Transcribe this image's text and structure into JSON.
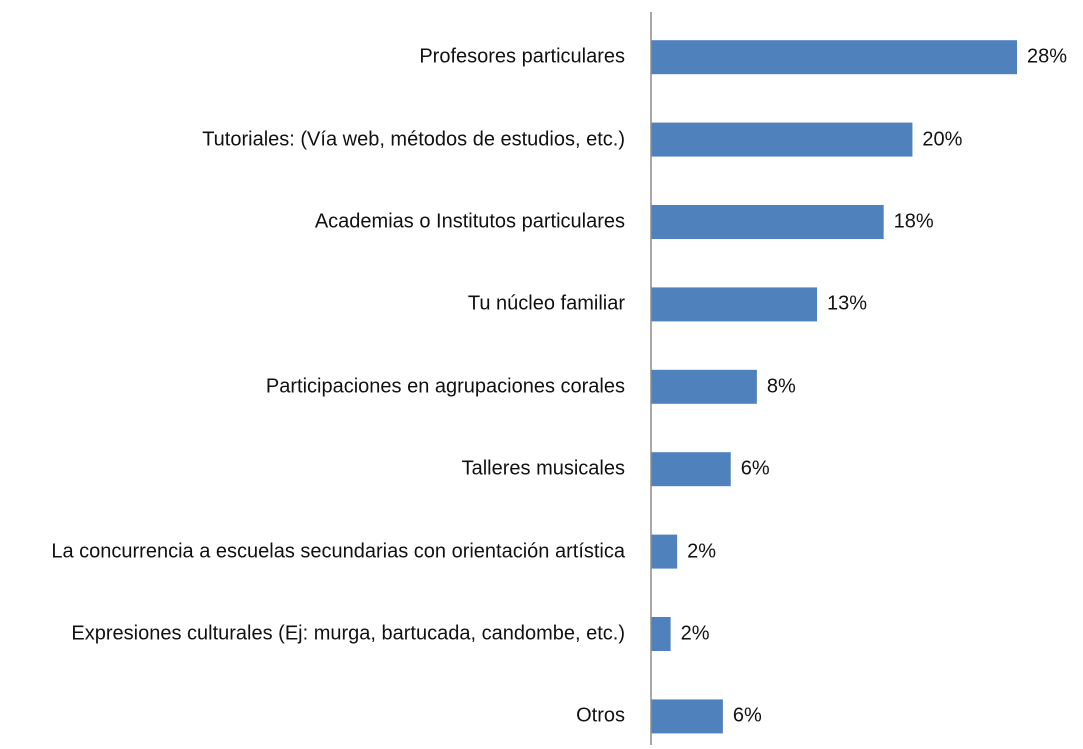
{
  "chart_data": {
    "type": "bar",
    "orientation": "horizontal",
    "categories": [
      "Profesores particulares",
      "Tutoriales: (Vía web, métodos de estudios, etc.)",
      "Academias o Institutos particulares",
      "Tu núcleo familiar",
      "Participaciones en agrupaciones corales",
      "Talleres musicales",
      "La concurrencia a escuelas secundarias con orientación artística",
      "Expresiones culturales (Ej: murga, bartucada, candombe, etc.)",
      "Otros"
    ],
    "values": [
      28,
      20,
      17.8,
      12.7,
      8.1,
      6.1,
      2,
      1.5,
      5.5
    ],
    "value_labels": [
      "28%",
      "20%",
      "18%",
      "13%",
      "8%",
      "6%",
      "2%",
      "2%",
      "6%"
    ],
    "color": "#4f81bd"
  }
}
